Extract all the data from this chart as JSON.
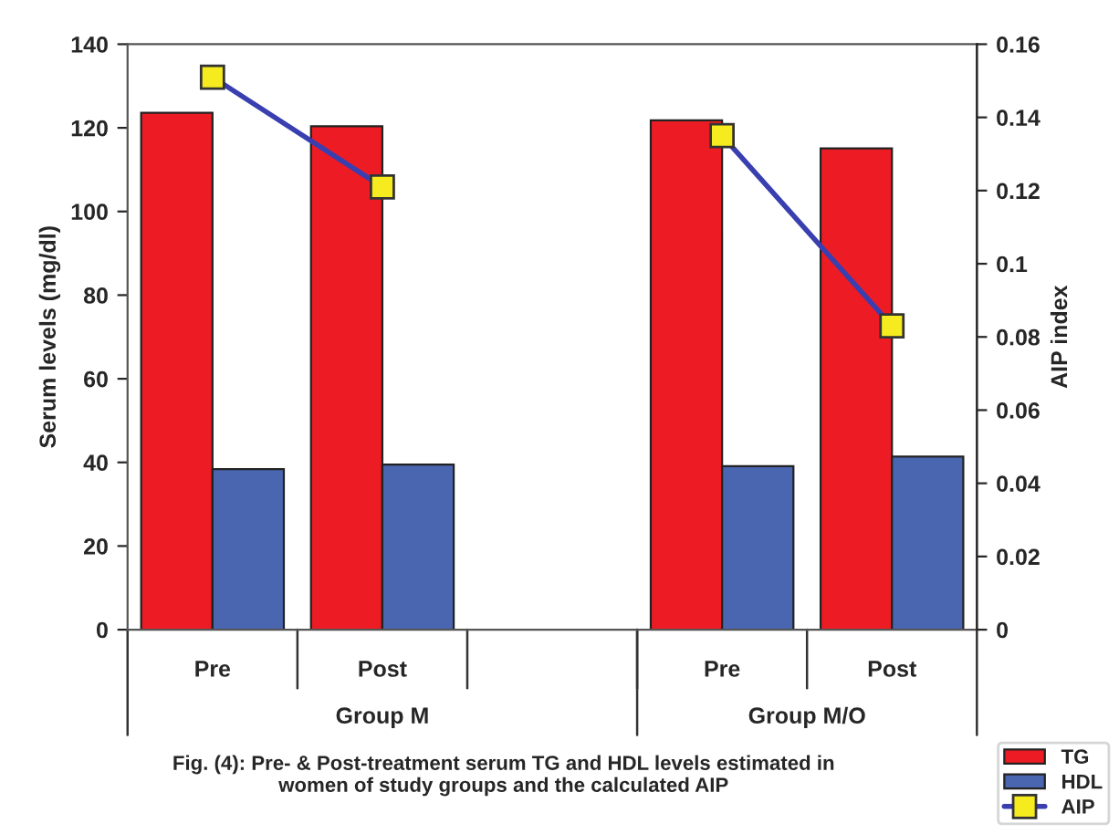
{
  "chart_data": {
    "type": "bar",
    "categories": [
      "Pre",
      "Post",
      null,
      "Pre",
      "Post"
    ],
    "ylabel": "Serum levels (mg/dl)",
    "y2label": "AIP index",
    "ylim": [
      0,
      140
    ],
    "yticks": [
      0,
      20,
      40,
      60,
      80,
      100,
      120,
      140
    ],
    "y2lim": [
      0,
      0.16
    ],
    "y2ticks": [
      0,
      0.02,
      0.04,
      0.06,
      0.08,
      {
        "value": 0.1,
        "label": "0.1"
      },
      0.12,
      0.14,
      0.16
    ],
    "series": [
      {
        "name": "TG",
        "color": "#ed1c24",
        "values": [
          123.6,
          120.4,
          null,
          121.8,
          115.1
        ]
      },
      {
        "name": "HDL",
        "color": "#4a66b0",
        "values": [
          38.4,
          39.5,
          null,
          39.1,
          41.4
        ]
      },
      {
        "name": "AIP",
        "type": "line",
        "axis": "y2",
        "color": "#3a3fb0",
        "values": [
          0.151,
          0.121,
          null,
          0.135,
          0.083
        ]
      }
    ],
    "marker": "square",
    "grid": false,
    "legend": "bottom right",
    "annotations": [
      "Group M",
      "Group M/O",
      "Fig. (4): Pre- & Post-treatment serum TG and HDL levels estimated in\nwomen of study groups and the calculated AIP"
    ]
  }
}
